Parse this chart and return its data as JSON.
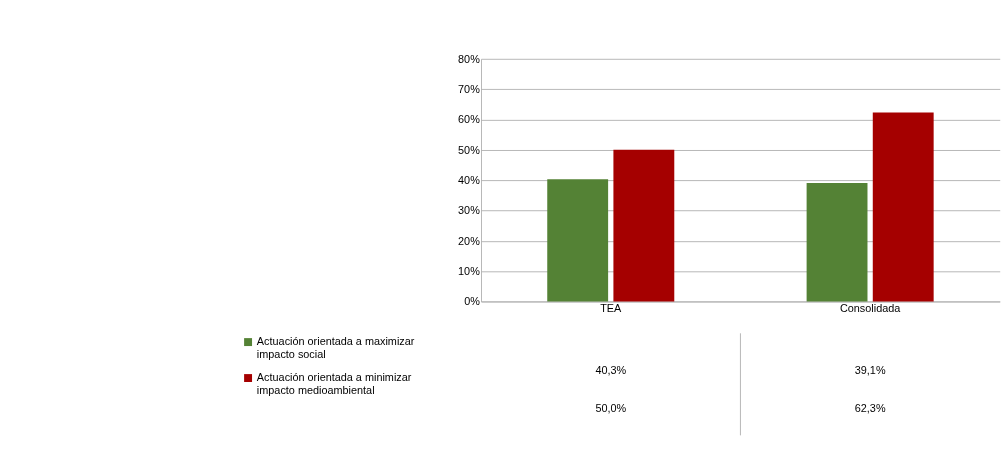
{
  "chart_data": {
    "type": "bar",
    "categories": [
      "TEA",
      "Consolidada"
    ],
    "series": [
      {
        "name": "Actuación orientada a maximizar impacto social",
        "color": "#548235",
        "values": [
          40.3,
          39.1
        ],
        "value_labels": [
          "40,3%",
          "39,1%"
        ]
      },
      {
        "name": "Actuación orientada a minimizar impacto medioambiental",
        "color": "#a50000",
        "values": [
          50.0,
          62.3
        ],
        "value_labels": [
          "50,0%",
          "62,3%"
        ]
      }
    ],
    "ylim": [
      0,
      80
    ],
    "yticks": [
      {
        "value": 0,
        "label": "0%"
      },
      {
        "value": 10,
        "label": "10%"
      },
      {
        "value": 20,
        "label": "20%"
      },
      {
        "value": 30,
        "label": "30%"
      },
      {
        "value": 40,
        "label": "40%"
      },
      {
        "value": 50,
        "label": "50%"
      },
      {
        "value": 60,
        "label": "60%"
      },
      {
        "value": 70,
        "label": "70%"
      },
      {
        "value": 80,
        "label": "80%"
      }
    ],
    "grid": "y",
    "legend": "bottom left"
  }
}
